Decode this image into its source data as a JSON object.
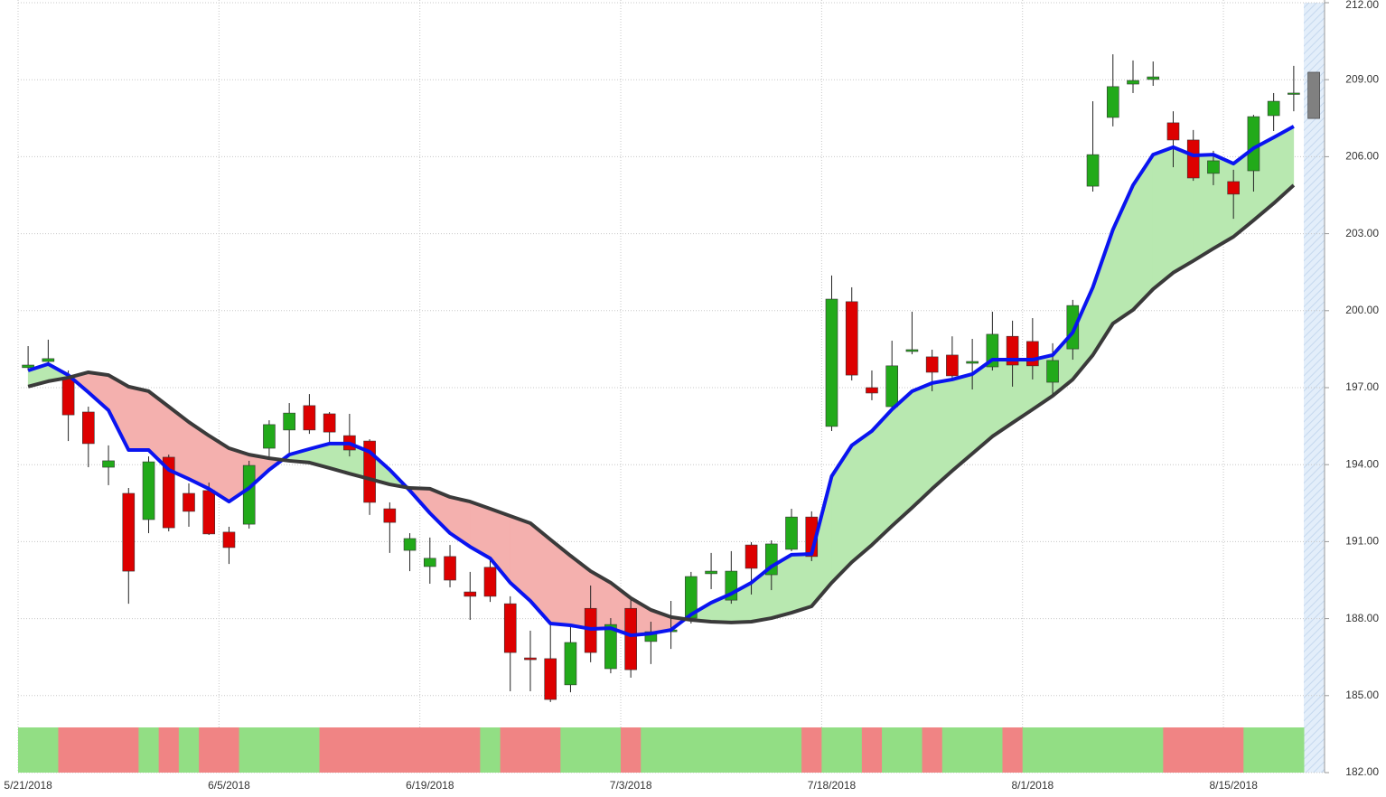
{
  "chart_data": {
    "type": "candlestick",
    "categories": [
      "5/21/2018",
      null,
      null,
      null,
      null,
      null,
      null,
      null,
      null,
      null,
      "6/5/2018",
      null,
      null,
      null,
      null,
      null,
      null,
      null,
      null,
      null,
      "6/19/2018",
      null,
      null,
      null,
      null,
      null,
      null,
      null,
      null,
      null,
      "7/3/2018",
      null,
      null,
      null,
      null,
      null,
      null,
      null,
      null,
      null,
      "7/18/2018",
      null,
      null,
      null,
      null,
      null,
      null,
      null,
      null,
      null,
      "8/1/2018",
      null,
      null,
      null,
      null,
      null,
      null,
      null,
      null,
      null,
      "8/15/2018",
      null,
      null,
      null,
      null
    ],
    "open": [
      197.78,
      198.02,
      197.39,
      196.05,
      193.9,
      192.88,
      191.86,
      194.29,
      192.88,
      192.99,
      191.37,
      191.68,
      194.64,
      195.35,
      196.3,
      195.98,
      195.13,
      194.92,
      192.28,
      190.66,
      190.03,
      190.42,
      189.04,
      190.0,
      188.58,
      186.47,
      186.44,
      185.42,
      188.4,
      186.05,
      188.4,
      187.11,
      187.49,
      188.02,
      189.75,
      188.72,
      190.87,
      189.71,
      190.7,
      191.96,
      195.49,
      200.35,
      197.0,
      196.26,
      198.41,
      198.2,
      198.27,
      197.95,
      197.81,
      199.0,
      198.8,
      197.21,
      198.51,
      204.85,
      207.53,
      208.83,
      209.01,
      207.32,
      206.65,
      205.35,
      205.03,
      205.45,
      207.6,
      208.44,
      209.29
    ],
    "high": [
      198.62,
      198.87,
      197.67,
      196.26,
      194.75,
      193.09,
      194.32,
      194.39,
      193.27,
      193.3,
      191.58,
      194.15,
      195.73,
      196.4,
      196.75,
      196.05,
      195.98,
      194.99,
      192.53,
      191.33,
      191.16,
      190.87,
      189.82,
      190.35,
      188.87,
      187.53,
      187.81,
      187.81,
      189.29,
      188.02,
      188.76,
      187.88,
      188.69,
      189.82,
      190.56,
      190.63,
      190.98,
      191.05,
      192.28,
      192.18,
      201.37,
      200.91,
      197.67,
      198.83,
      199.96,
      198.48,
      199.0,
      198.9,
      199.96,
      199.61,
      199.71,
      198.73,
      200.42,
      208.16,
      209.99,
      209.75,
      209.71,
      207.77,
      207.04,
      206.23,
      205.49,
      207.63,
      208.48,
      209.54,
      209.29
    ],
    "low": [
      197.67,
      197.85,
      194.92,
      193.9,
      193.2,
      188.58,
      191.33,
      191.4,
      191.58,
      191.26,
      190.13,
      191.51,
      194.25,
      194.32,
      195.2,
      194.85,
      194.32,
      192.04,
      190.56,
      189.85,
      189.36,
      189.22,
      187.95,
      188.65,
      185.17,
      185.17,
      184.75,
      185.13,
      186.3,
      185.87,
      185.7,
      186.23,
      186.82,
      187.81,
      189.15,
      188.58,
      188.94,
      189.11,
      190.63,
      190.24,
      195.31,
      197.28,
      196.51,
      196.19,
      198.3,
      196.86,
      197.39,
      196.93,
      197.67,
      197.04,
      197.32,
      196.72,
      198.09,
      204.64,
      207.18,
      208.48,
      208.76,
      205.59,
      205.06,
      204.89,
      203.58,
      204.64,
      207.0,
      207.77,
      207.49
    ],
    "close": [
      197.88,
      198.13,
      195.94,
      194.82,
      194.15,
      189.85,
      194.11,
      191.54,
      192.18,
      191.3,
      190.77,
      193.97,
      195.56,
      196.01,
      195.35,
      195.27,
      194.57,
      192.53,
      191.75,
      191.12,
      190.35,
      189.5,
      188.87,
      188.87,
      186.68,
      186.4,
      184.85,
      187.07,
      186.68,
      187.77,
      186.01,
      187.49,
      187.56,
      189.64,
      189.85,
      189.85,
      189.96,
      190.91,
      191.96,
      190.42,
      200.45,
      197.49,
      196.79,
      197.85,
      198.48,
      197.6,
      197.46,
      198.02,
      199.08,
      197.88,
      197.85,
      198.06,
      200.2,
      206.08,
      208.73,
      208.97,
      209.11,
      206.65,
      205.17,
      205.84,
      204.54,
      207.56,
      208.16,
      208.48,
      207.49
    ],
    "up_color": "#22aa1a",
    "down_color": "#dd0000",
    "live_color": "#808080",
    "lines": [
      {
        "color": "#0a14f0",
        "values": [
          197.67,
          197.92,
          197.49,
          196.82,
          196.12,
          194.57,
          194.57,
          193.8,
          193.44,
          193.06,
          192.56,
          193.09,
          193.8,
          194.39,
          194.61,
          194.82,
          194.82,
          194.5,
          193.8,
          192.99,
          192.11,
          191.33,
          190.8,
          190.35,
          189.4,
          188.69,
          187.81,
          187.74,
          187.6,
          187.63,
          187.35,
          187.42,
          187.56,
          188.16,
          188.62,
          188.97,
          189.4,
          190.03,
          190.49,
          190.52,
          193.55,
          194.75,
          195.31,
          196.15,
          196.86,
          197.18,
          197.32,
          197.53,
          198.09,
          198.09,
          198.09,
          198.27,
          199.15,
          200.91,
          203.16,
          204.89,
          206.08,
          206.37,
          206.05,
          206.08,
          205.73,
          206.33,
          206.75,
          207.18,
          null
        ]
      },
      {
        "color": "#3a3a3a",
        "values": [
          197.04,
          197.25,
          197.39,
          197.6,
          197.49,
          197.04,
          196.86,
          196.26,
          195.66,
          195.13,
          194.64,
          194.39,
          194.25,
          194.15,
          194.08,
          193.87,
          193.65,
          193.44,
          193.23,
          193.09,
          193.06,
          192.74,
          192.56,
          192.28,
          192.0,
          191.72,
          191.08,
          190.45,
          189.85,
          189.4,
          188.8,
          188.34,
          188.06,
          187.95,
          187.88,
          187.85,
          187.88,
          188.02,
          188.23,
          188.48,
          189.4,
          190.2,
          190.87,
          191.61,
          192.32,
          193.06,
          193.76,
          194.43,
          195.1,
          195.63,
          196.15,
          196.68,
          197.32,
          198.27,
          199.5,
          200.03,
          200.84,
          201.48,
          201.94,
          202.42,
          202.88,
          203.52,
          204.18,
          204.89,
          null
        ]
      }
    ],
    "fill_up": "#b8e8b0",
    "fill_down": "#f4b0ae",
    "band_colors": [
      "#92de84",
      "#92de84",
      "#f08484",
      "#f08484",
      "#f08484",
      "#f08484",
      "#92de84",
      "#f08484",
      "#92de84",
      "#f08484",
      "#f08484",
      "#92de84",
      "#92de84",
      "#92de84",
      "#92de84",
      "#f08484",
      "#f08484",
      "#f08484",
      "#f08484",
      "#f08484",
      "#f08484",
      "#f08484",
      "#f08484",
      "#92de84",
      "#f08484",
      "#f08484",
      "#f08484",
      "#92de84",
      "#92de84",
      "#92de84",
      "#f08484",
      "#92de84",
      "#92de84",
      "#92de84",
      "#92de84",
      "#92de84",
      "#92de84",
      "#92de84",
      "#92de84",
      "#f08484",
      "#92de84",
      "#92de84",
      "#f08484",
      "#92de84",
      "#92de84",
      "#f08484",
      "#92de84",
      "#92de84",
      "#92de84",
      "#f08484",
      "#92de84",
      "#92de84",
      "#92de84",
      "#92de84",
      "#92de84",
      "#92de84",
      "#92de84",
      "#f08484",
      "#f08484",
      "#f08484",
      "#f08484",
      "#92de84",
      "#92de84",
      "#92de84"
    ],
    "ylim": [
      182,
      212
    ],
    "yticks": [
      {
        "value": 182,
        "label": "182.00"
      },
      {
        "value": 185,
        "label": "185.00"
      },
      {
        "value": 188,
        "label": "188.00"
      },
      {
        "value": 191,
        "label": "191.00"
      },
      {
        "value": 194,
        "label": "194.00"
      },
      {
        "value": 197,
        "label": "197.00"
      },
      {
        "value": 200,
        "label": "200.00"
      },
      {
        "value": 203,
        "label": "203.00"
      },
      {
        "value": 206,
        "label": "206.00"
      },
      {
        "value": 209,
        "label": "209.00"
      },
      {
        "value": 212,
        "label": "212.00"
      }
    ],
    "grid": true
  }
}
